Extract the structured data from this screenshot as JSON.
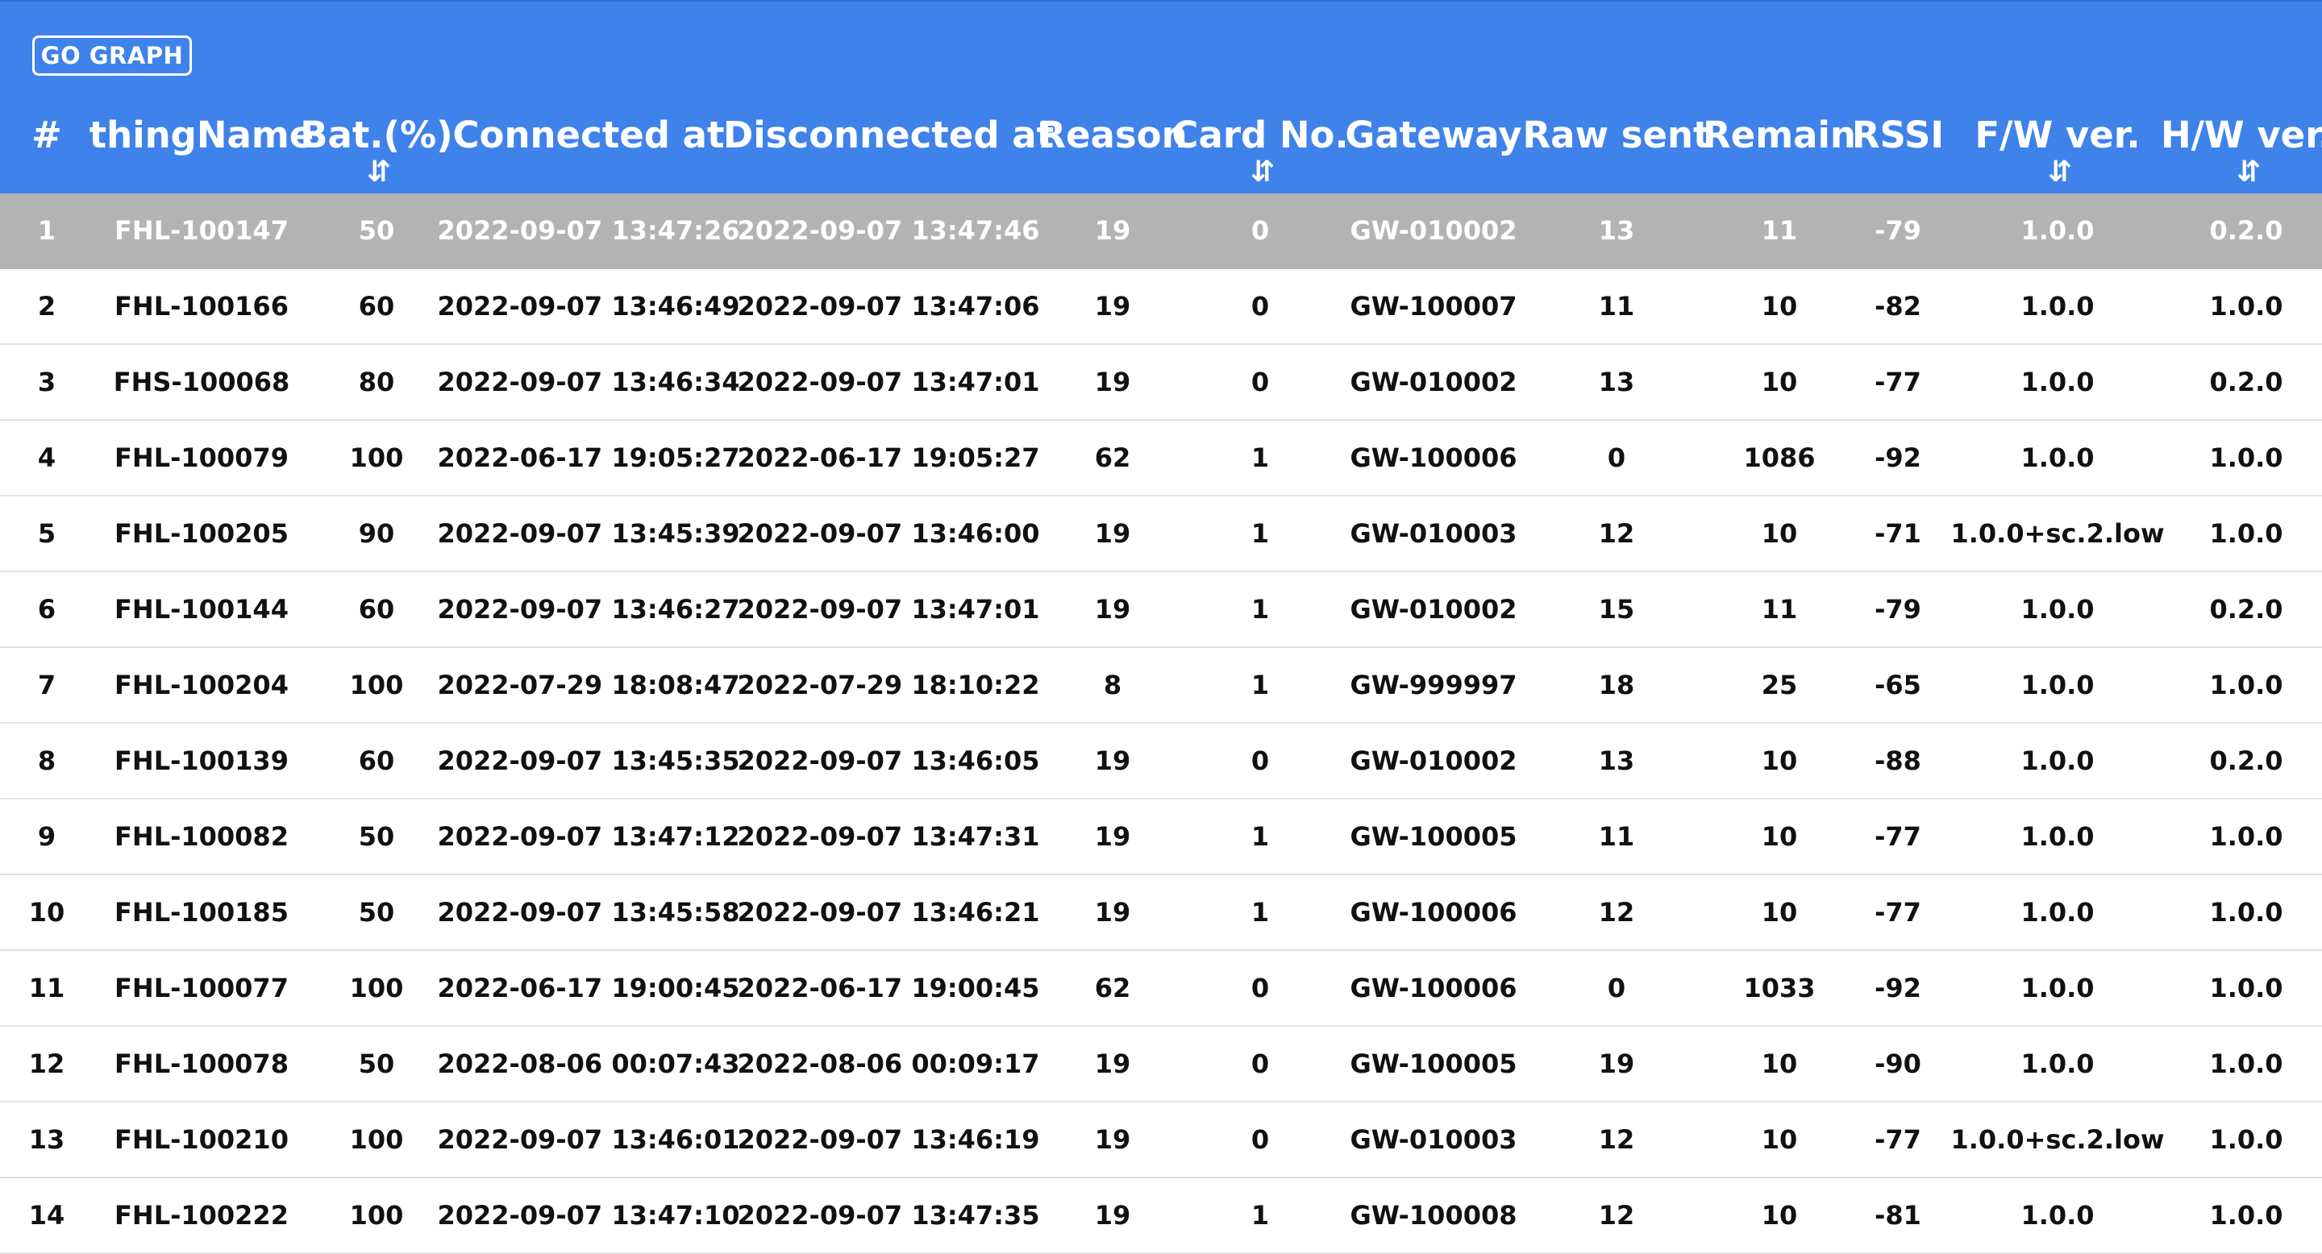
{
  "toolbar": {
    "go_graph_label": "GO GRAPH"
  },
  "columns": [
    {
      "key": "num",
      "label": "#",
      "sortable": false
    },
    {
      "key": "thingName",
      "label": "thingName",
      "sortable": false
    },
    {
      "key": "bat",
      "label": "Bat.(%)",
      "sortable": true
    },
    {
      "key": "connected",
      "label": "Connected at",
      "sortable": false
    },
    {
      "key": "disconnected",
      "label": "Disconnected at",
      "sortable": false
    },
    {
      "key": "reason",
      "label": "Reason",
      "sortable": false
    },
    {
      "key": "card",
      "label": "Card No.",
      "sortable": true
    },
    {
      "key": "gateway",
      "label": "Gateway",
      "sortable": false
    },
    {
      "key": "raw",
      "label": "Raw sent",
      "sortable": false
    },
    {
      "key": "remain",
      "label": "Remain",
      "sortable": false
    },
    {
      "key": "rssi",
      "label": "RSSI",
      "sortable": false
    },
    {
      "key": "fw",
      "label": "F/W ver.",
      "sortable": true
    },
    {
      "key": "hw",
      "label": "H/W ver.",
      "sortable": true
    }
  ],
  "sort_icon": "⇵",
  "colors": {
    "header_bg": "#3f82ea",
    "selected_row_bg": "#b3b3b3"
  },
  "selected_row": 0,
  "rows": [
    [
      "1",
      "FHL-100147",
      "50",
      "2022-09-07 13:47:26",
      "2022-09-07 13:47:46",
      "19",
      "0",
      "GW-010002",
      "13",
      "11",
      "-79",
      "1.0.0",
      "0.2.0"
    ],
    [
      "2",
      "FHL-100166",
      "60",
      "2022-09-07 13:46:49",
      "2022-09-07 13:47:06",
      "19",
      "0",
      "GW-100007",
      "11",
      "10",
      "-82",
      "1.0.0",
      "1.0.0"
    ],
    [
      "3",
      "FHS-100068",
      "80",
      "2022-09-07 13:46:34",
      "2022-09-07 13:47:01",
      "19",
      "0",
      "GW-010002",
      "13",
      "10",
      "-77",
      "1.0.0",
      "0.2.0"
    ],
    [
      "4",
      "FHL-100079",
      "100",
      "2022-06-17 19:05:27",
      "2022-06-17 19:05:27",
      "62",
      "1",
      "GW-100006",
      "0",
      "1086",
      "-92",
      "1.0.0",
      "1.0.0"
    ],
    [
      "5",
      "FHL-100205",
      "90",
      "2022-09-07 13:45:39",
      "2022-09-07 13:46:00",
      "19",
      "1",
      "GW-010003",
      "12",
      "10",
      "-71",
      "1.0.0+sc.2.low",
      "1.0.0"
    ],
    [
      "6",
      "FHL-100144",
      "60",
      "2022-09-07 13:46:27",
      "2022-09-07 13:47:01",
      "19",
      "1",
      "GW-010002",
      "15",
      "11",
      "-79",
      "1.0.0",
      "0.2.0"
    ],
    [
      "7",
      "FHL-100204",
      "100",
      "2022-07-29 18:08:47",
      "2022-07-29 18:10:22",
      "8",
      "1",
      "GW-999997",
      "18",
      "25",
      "-65",
      "1.0.0",
      "1.0.0"
    ],
    [
      "8",
      "FHL-100139",
      "60",
      "2022-09-07 13:45:35",
      "2022-09-07 13:46:05",
      "19",
      "0",
      "GW-010002",
      "13",
      "10",
      "-88",
      "1.0.0",
      "0.2.0"
    ],
    [
      "9",
      "FHL-100082",
      "50",
      "2022-09-07 13:47:12",
      "2022-09-07 13:47:31",
      "19",
      "1",
      "GW-100005",
      "11",
      "10",
      "-77",
      "1.0.0",
      "1.0.0"
    ],
    [
      "10",
      "FHL-100185",
      "50",
      "2022-09-07 13:45:58",
      "2022-09-07 13:46:21",
      "19",
      "1",
      "GW-100006",
      "12",
      "10",
      "-77",
      "1.0.0",
      "1.0.0"
    ],
    [
      "11",
      "FHL-100077",
      "100",
      "2022-06-17 19:00:45",
      "2022-06-17 19:00:45",
      "62",
      "0",
      "GW-100006",
      "0",
      "1033",
      "-92",
      "1.0.0",
      "1.0.0"
    ],
    [
      "12",
      "FHL-100078",
      "50",
      "2022-08-06 00:07:43",
      "2022-08-06 00:09:17",
      "19",
      "0",
      "GW-100005",
      "19",
      "10",
      "-90",
      "1.0.0",
      "1.0.0"
    ],
    [
      "13",
      "FHL-100210",
      "100",
      "2022-09-07 13:46:01",
      "2022-09-07 13:46:19",
      "19",
      "0",
      "GW-010003",
      "12",
      "10",
      "-77",
      "1.0.0+sc.2.low",
      "1.0.0"
    ],
    [
      "14",
      "FHL-100222",
      "100",
      "2022-09-07 13:47:10",
      "2022-09-07 13:47:35",
      "19",
      "1",
      "GW-100008",
      "12",
      "10",
      "-81",
      "1.0.0",
      "1.0.0"
    ]
  ]
}
